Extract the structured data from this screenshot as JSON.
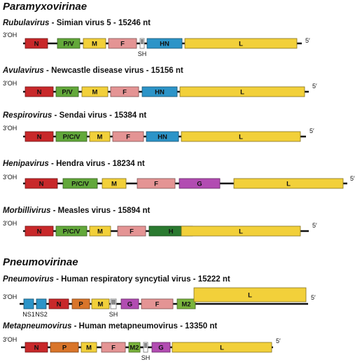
{
  "subfamilies": [
    {
      "name": "Paramyxovirinae"
    },
    {
      "name": "Pneumovirinae"
    }
  ],
  "genomes": [
    {
      "genus": "Rubulavirus",
      "virus": "Simian virus 5",
      "length": "15246 nt",
      "genes": [
        {
          "name": "N",
          "color": "#c8282a"
        },
        {
          "name": "P/V",
          "color": "#62a83a"
        },
        {
          "name": "M",
          "color": "#f2d03a"
        },
        {
          "name": "F",
          "color": "#e49494"
        },
        {
          "name": "SH",
          "color": "#cfcfcf"
        },
        {
          "name": "HN",
          "color": "#2c94c8"
        },
        {
          "name": "L",
          "color": "#f2d03a"
        }
      ]
    },
    {
      "genus": "Avulavirus",
      "virus": "Newcastle disease virus",
      "length": "15156 nt",
      "genes": [
        {
          "name": "N",
          "color": "#c8282a"
        },
        {
          "name": "P/V",
          "color": "#62a83a"
        },
        {
          "name": "M",
          "color": "#f2d03a"
        },
        {
          "name": "F",
          "color": "#e49494"
        },
        {
          "name": "HN",
          "color": "#2c94c8"
        },
        {
          "name": "L",
          "color": "#f2d03a"
        }
      ]
    },
    {
      "genus": "Respirovirus",
      "virus": "Sendai virus",
      "length": "15384 nt",
      "genes": [
        {
          "name": "N",
          "color": "#c8282a"
        },
        {
          "name": "P/C/V",
          "color": "#62a83a"
        },
        {
          "name": "M",
          "color": "#f2d03a"
        },
        {
          "name": "F",
          "color": "#e49494"
        },
        {
          "name": "HN",
          "color": "#2c94c8"
        },
        {
          "name": "L",
          "color": "#f2d03a"
        }
      ]
    },
    {
      "genus": "Henipavirus",
      "virus": "Hendra virus",
      "length": "18234 nt",
      "genes": [
        {
          "name": "N",
          "color": "#c8282a"
        },
        {
          "name": "P/C/V",
          "color": "#62a83a"
        },
        {
          "name": "M",
          "color": "#f2d03a"
        },
        {
          "name": "F",
          "color": "#e49494"
        },
        {
          "name": "G",
          "color": "#b24cb2"
        },
        {
          "name": "L",
          "color": "#f2d03a"
        }
      ]
    },
    {
      "genus": "Morbillivirus",
      "virus": "Measles virus",
      "length": "15894 nt",
      "genes": [
        {
          "name": "N",
          "color": "#c8282a"
        },
        {
          "name": "P/C/V",
          "color": "#62a83a"
        },
        {
          "name": "M",
          "color": "#f2d03a"
        },
        {
          "name": "F",
          "color": "#e49494"
        },
        {
          "name": "H",
          "color": "#2a7a30"
        },
        {
          "name": "L",
          "color": "#f2d03a"
        }
      ]
    },
    {
      "genus": "Pneumovirus",
      "virus": "Human respiratory syncytial virus",
      "length": "15222 nt",
      "genes": [
        {
          "name": "NS1",
          "color": "#2c94c8"
        },
        {
          "name": "NS2",
          "color": "#2c94c8"
        },
        {
          "name": "N",
          "color": "#c8282a"
        },
        {
          "name": "P",
          "color": "#d9752a"
        },
        {
          "name": "M",
          "color": "#f2d03a"
        },
        {
          "name": "SH",
          "color": "#cfcfcf"
        },
        {
          "name": "G",
          "color": "#b24cb2"
        },
        {
          "name": "F",
          "color": "#e49494"
        },
        {
          "name": "M2",
          "color": "#7ab43c"
        },
        {
          "name": "L",
          "color": "#f2d03a"
        }
      ]
    },
    {
      "genus": "Metapneumovirus",
      "virus": "Human metapneumovirus",
      "length": "13350 nt",
      "genes": [
        {
          "name": "N",
          "color": "#c8282a"
        },
        {
          "name": "P",
          "color": "#d9752a"
        },
        {
          "name": "M",
          "color": "#f2d03a"
        },
        {
          "name": "F",
          "color": "#e49494"
        },
        {
          "name": "M2",
          "color": "#7ab43c"
        },
        {
          "name": "SH",
          "color": "#cfcfcf"
        },
        {
          "name": "G",
          "color": "#b24cb2"
        },
        {
          "name": "L",
          "color": "#f2d03a"
        }
      ]
    }
  ],
  "end_labels": {
    "left": "3′OH",
    "right": "5′"
  },
  "title_separator": "-"
}
